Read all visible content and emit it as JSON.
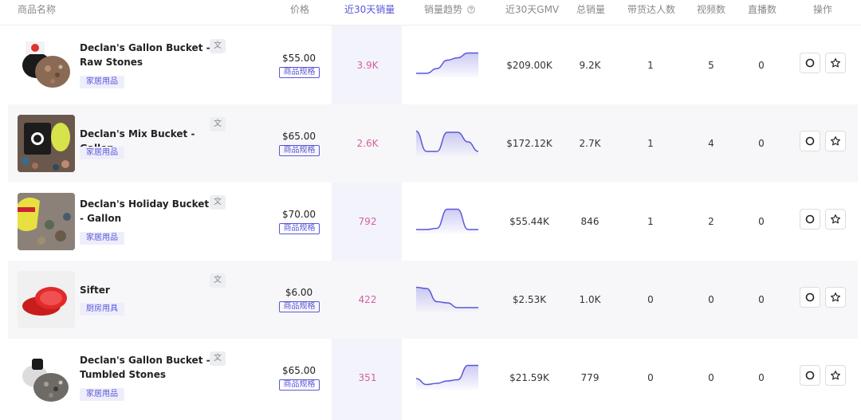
{
  "header": {
    "name": "商品名称",
    "price": "价格",
    "sales30": "近30天销量",
    "trend": "销量趋势",
    "gmv30": "近30天GMV",
    "total": "总销量",
    "influencers": "带货达人数",
    "videos": "视频数",
    "lives": "直播数",
    "actions": "操作"
  },
  "colors": {
    "accent": "#5a57d9",
    "sales": "#d75fa0",
    "spark_line": "#5a57d9"
  },
  "products": [
    {
      "name": "Declan's Gallon Bucket - Raw Stones",
      "category": "家居用品",
      "price": "$55.00",
      "spec": "商品规格",
      "sales30": "3.9K",
      "gmv30": "$209.00K",
      "total": "9.2K",
      "influencers": "1",
      "videos": "5",
      "lives": "0",
      "trend": [
        0.1,
        0.1,
        0.3,
        0.65,
        0.75,
        0.95,
        0.95
      ]
    },
    {
      "name": "Declan's Mix Bucket - Gallon",
      "category": "家居用品",
      "price": "$65.00",
      "spec": "商品规格",
      "sales30": "2.6K",
      "gmv30": "$172.12K",
      "total": "2.7K",
      "influencers": "1",
      "videos": "4",
      "lives": "0",
      "trend": [
        0.95,
        0.1,
        0.1,
        0.9,
        0.9,
        0.5,
        0.1
      ]
    },
    {
      "name": "Declan's Holiday Bucket - Gallon",
      "category": "家居用品",
      "price": "$70.00",
      "spec": "商品规格",
      "sales30": "792",
      "gmv30": "$55.44K",
      "total": "846",
      "influencers": "1",
      "videos": "2",
      "lives": "0",
      "trend": [
        0.1,
        0.1,
        0.15,
        0.95,
        0.95,
        0.1,
        0.1
      ]
    },
    {
      "name": "Sifter",
      "category": "厨房用具",
      "price": "$6.00",
      "spec": "商品规格",
      "sales30": "422",
      "gmv30": "$2.53K",
      "total": "1.0K",
      "influencers": "0",
      "videos": "0",
      "lives": "0",
      "trend": [
        0.95,
        0.9,
        0.35,
        0.3,
        0.1,
        0.1,
        0.1
      ]
    },
    {
      "name": "Declan's Gallon Bucket - Tumbled Stones",
      "category": "家居用品",
      "price": "$65.00",
      "spec": "商品规格",
      "sales30": "351",
      "gmv30": "$21.59K",
      "total": "779",
      "influencers": "0",
      "videos": "0",
      "lives": "0",
      "trend": [
        0.4,
        0.15,
        0.2,
        0.3,
        0.35,
        0.95,
        0.95
      ]
    }
  ],
  "icons": {
    "translate": "translate-icon",
    "track": "circle-icon",
    "favorite": "star-icon",
    "help": "help-circle-icon"
  }
}
